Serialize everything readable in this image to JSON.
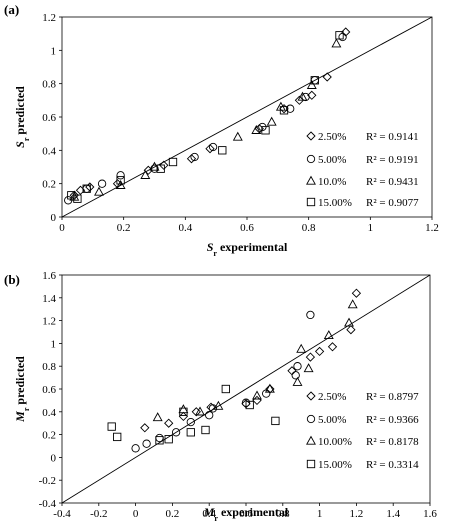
{
  "chart_data": [
    {
      "type": "scatter",
      "panel_label": "(a)",
      "xlabel": "S_r experimental",
      "xlabel_sym": "S",
      "xlabel_sub": "r",
      "xlabel_rest": " experimental",
      "ylabel_sym": "S",
      "ylabel_sub": "r",
      "ylabel_rest": " predicted",
      "xlim": [
        0,
        1.2
      ],
      "ylim": [
        0,
        1.2
      ],
      "xticks": [
        "0",
        "0.2",
        "0.4",
        "0.6",
        "0.8",
        "1",
        "1.2"
      ],
      "yticks": [
        "0",
        "0.2",
        "0.4",
        "0.6",
        "0.8",
        "1",
        "1.2"
      ],
      "reference_line": "y = x",
      "grid": false,
      "legend_placement": "bottom-right",
      "series": [
        {
          "name": "2.50%",
          "r2": "R² = 0.9141",
          "marker": "diamond",
          "points": [
            [
              0.04,
              0.13
            ],
            [
              0.06,
              0.16
            ],
            [
              0.09,
              0.18
            ],
            [
              0.18,
              0.2
            ],
            [
              0.28,
              0.28
            ],
            [
              0.33,
              0.31
            ],
            [
              0.42,
              0.35
            ],
            [
              0.48,
              0.41
            ],
            [
              0.64,
              0.53
            ],
            [
              0.72,
              0.65
            ],
            [
              0.77,
              0.7
            ],
            [
              0.81,
              0.73
            ],
            [
              0.86,
              0.84
            ],
            [
              0.92,
              1.11
            ]
          ]
        },
        {
          "name": "5.00%",
          "r2": "R² = 0.9191",
          "marker": "circle",
          "points": [
            [
              0.02,
              0.1
            ],
            [
              0.08,
              0.17
            ],
            [
              0.13,
              0.2
            ],
            [
              0.19,
              0.25
            ],
            [
              0.3,
              0.29
            ],
            [
              0.43,
              0.36
            ],
            [
              0.49,
              0.42
            ],
            [
              0.65,
              0.54
            ],
            [
              0.74,
              0.65
            ],
            [
              0.79,
              0.72
            ],
            [
              0.82,
              0.82
            ],
            [
              0.91,
              1.08
            ]
          ]
        },
        {
          "name": "10.0%",
          "r2": "R² = 0.9431",
          "marker": "triangle",
          "points": [
            [
              0.04,
              0.12
            ],
            [
              0.12,
              0.15
            ],
            [
              0.19,
              0.19
            ],
            [
              0.27,
              0.25
            ],
            [
              0.3,
              0.3
            ],
            [
              0.57,
              0.48
            ],
            [
              0.63,
              0.52
            ],
            [
              0.68,
              0.57
            ],
            [
              0.71,
              0.66
            ],
            [
              0.78,
              0.72
            ],
            [
              0.81,
              0.79
            ],
            [
              0.89,
              1.04
            ]
          ]
        },
        {
          "name": "15.00%",
          "r2": "R² = 0.9077",
          "marker": "square",
          "points": [
            [
              0.03,
              0.13
            ],
            [
              0.05,
              0.11
            ],
            [
              0.08,
              0.17
            ],
            [
              0.19,
              0.22
            ],
            [
              0.32,
              0.29
            ],
            [
              0.36,
              0.33
            ],
            [
              0.52,
              0.4
            ],
            [
              0.66,
              0.52
            ],
            [
              0.72,
              0.64
            ],
            [
              0.82,
              0.82
            ],
            [
              0.9,
              1.09
            ]
          ]
        }
      ]
    },
    {
      "type": "scatter",
      "panel_label": "(b)",
      "xlabel": "M_r experimental",
      "xlabel_sym": "M",
      "xlabel_sub": "r",
      "xlabel_rest": " experimental",
      "ylabel_sym": "M",
      "ylabel_sub": "r",
      "ylabel_rest": " predicted",
      "xlim": [
        -0.4,
        1.6
      ],
      "ylim": [
        -0.4,
        1.6
      ],
      "xticks": [
        "-0.4",
        "-0.2",
        "0",
        "0.2",
        "0.4",
        "0.6",
        "0.8",
        "1",
        "1.2",
        "1.4",
        "1.6"
      ],
      "yticks": [
        "-0.4",
        "-0.2",
        "0",
        "0.2",
        "0.4",
        "0.6",
        "0.8",
        "1",
        "1.2",
        "1.4",
        "1.6"
      ],
      "reference_line": "y = x",
      "grid": false,
      "legend_placement": "bottom-right",
      "series": [
        {
          "name": "2.50%",
          "r2": "R² = 0.8797",
          "marker": "diamond",
          "points": [
            [
              0.05,
              0.26
            ],
            [
              0.18,
              0.3
            ],
            [
              0.26,
              0.36
            ],
            [
              0.33,
              0.4
            ],
            [
              0.41,
              0.44
            ],
            [
              0.6,
              0.47
            ],
            [
              0.66,
              0.5
            ],
            [
              0.73,
              0.6
            ],
            [
              0.85,
              0.76
            ],
            [
              0.95,
              0.88
            ],
            [
              1.0,
              0.93
            ],
            [
              1.07,
              0.97
            ],
            [
              1.17,
              1.12
            ],
            [
              1.2,
              1.44
            ]
          ]
        },
        {
          "name": "5.00%",
          "r2": "R² = 0.9366",
          "marker": "circle",
          "points": [
            [
              0.0,
              0.08
            ],
            [
              0.06,
              0.12
            ],
            [
              0.13,
              0.17
            ],
            [
              0.22,
              0.22
            ],
            [
              0.3,
              0.31
            ],
            [
              0.4,
              0.37
            ],
            [
              0.42,
              0.43
            ],
            [
              0.6,
              0.48
            ],
            [
              0.71,
              0.56
            ],
            [
              0.87,
              0.72
            ],
            [
              0.88,
              0.8
            ],
            [
              0.95,
              1.25
            ]
          ]
        },
        {
          "name": "10.00%",
          "r2": "R² = 0.8178",
          "marker": "triangle",
          "points": [
            [
              0.12,
              0.35
            ],
            [
              0.26,
              0.42
            ],
            [
              0.35,
              0.4
            ],
            [
              0.45,
              0.45
            ],
            [
              0.66,
              0.54
            ],
            [
              0.73,
              0.6
            ],
            [
              0.88,
              0.66
            ],
            [
              0.9,
              0.95
            ],
            [
              0.94,
              0.78
            ],
            [
              1.05,
              1.07
            ],
            [
              1.16,
              1.18
            ],
            [
              1.18,
              1.34
            ]
          ]
        },
        {
          "name": "15.00%",
          "r2": "R² = 0.3314",
          "marker": "square",
          "points": [
            [
              -0.13,
              0.27
            ],
            [
              -0.1,
              0.18
            ],
            [
              0.13,
              0.15
            ],
            [
              0.18,
              0.16
            ],
            [
              0.26,
              0.4
            ],
            [
              0.3,
              0.22
            ],
            [
              0.38,
              0.24
            ],
            [
              0.49,
              0.6
            ],
            [
              0.62,
              0.46
            ],
            [
              0.76,
              0.32
            ]
          ]
        }
      ]
    }
  ]
}
